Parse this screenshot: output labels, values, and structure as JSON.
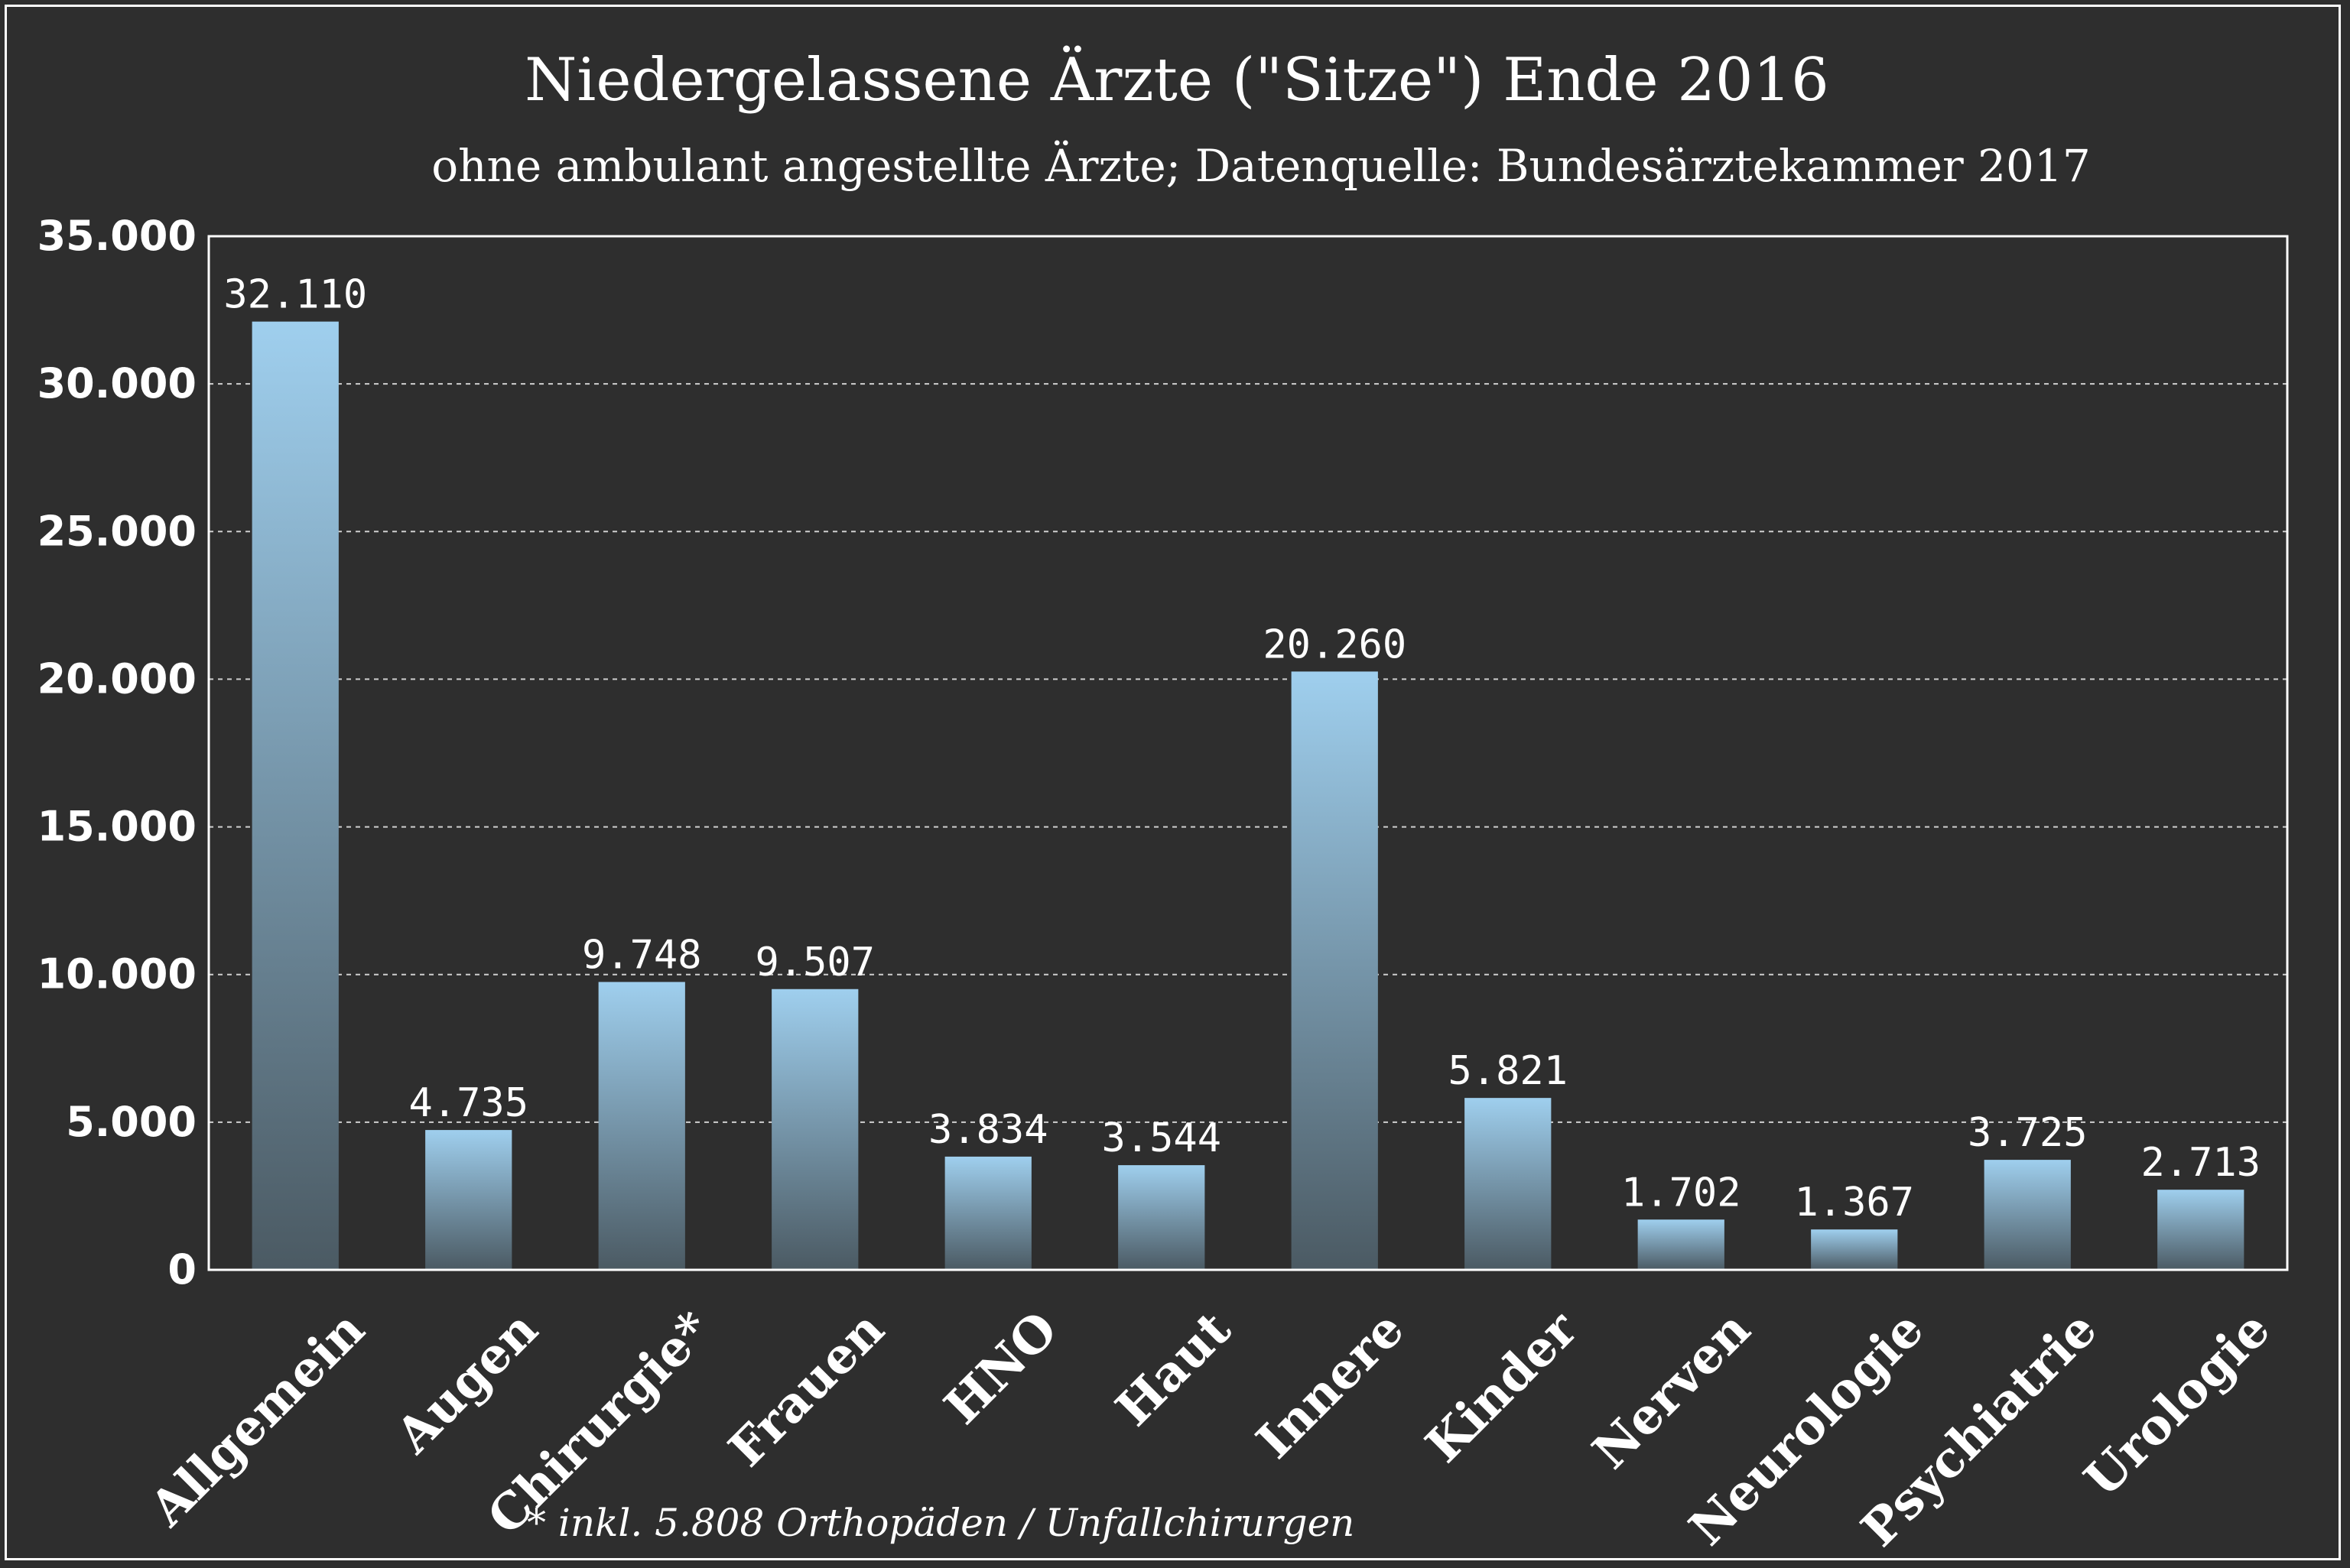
{
  "chart_data": {
    "type": "bar",
    "title": "Niedergelassene Ärzte (\"Sitze\") Ende 2016",
    "subtitle": "ohne ambulant angestellte Ärzte; Datenquelle: Bundesärztekammer 2017",
    "categories": [
      "Allgemein",
      "Augen",
      "Chirurgie*",
      "Frauen",
      "HNO",
      "Haut",
      "Innere",
      "Kinder",
      "Nerven",
      "Neurologie",
      "Psychiatrie",
      "Urologie"
    ],
    "values": [
      32110,
      4735,
      9748,
      9507,
      3834,
      3544,
      20260,
      5821,
      1702,
      1367,
      3725,
      2713
    ],
    "data_labels": [
      "32.110",
      "4.735",
      "9.748",
      "9.507",
      "3.834",
      "3.544",
      "20.260",
      "5.821",
      "1.702",
      "1.367",
      "3.725",
      "2.713"
    ],
    "yticks": [
      0,
      5000,
      10000,
      15000,
      20000,
      25000,
      30000,
      35000
    ],
    "ytick_labels": [
      "0",
      "5.000",
      "10.000",
      "15.000",
      "20.000",
      "25.000",
      "30.000",
      "35.000"
    ],
    "ylim": [
      0,
      35000
    ],
    "grid": true,
    "footnote": "* inkl. 5.808 Orthopäden / Unfallchirurgen",
    "colors": {
      "background": "#2e2e2e",
      "bar_top": "#9fcfee",
      "bar_bottom": "#4b5a63",
      "text": "#ffffff",
      "grid": "#cfcfcf"
    }
  }
}
